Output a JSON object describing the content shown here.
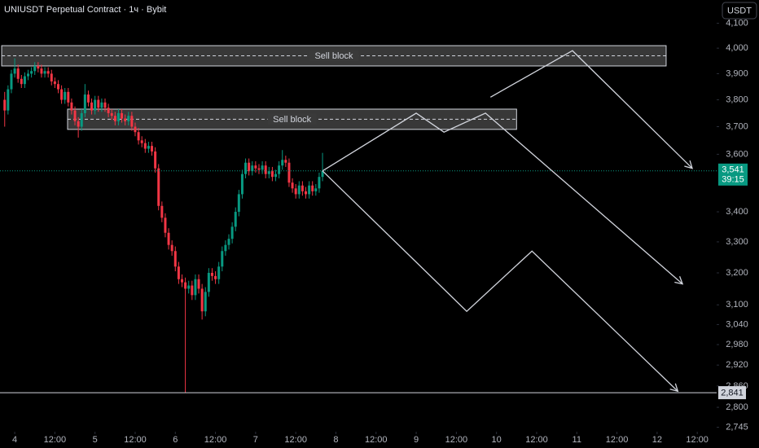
{
  "chart_data": {
    "type": "candlestick",
    "title": "UNIUSDT Perpetual Contract · 1ч · Bybit",
    "currency": "USDT",
    "log_scale": true,
    "up_color": "#089981",
    "down_color": "#f23645",
    "xlim": [
      -4.4,
      209.8
    ],
    "ylim": [
      2733,
      4196
    ],
    "xticks": [
      {
        "value": 0,
        "label": "4"
      },
      {
        "value": 12,
        "label": "12:00"
      },
      {
        "value": 24,
        "label": "5"
      },
      {
        "value": 36,
        "label": "12:00"
      },
      {
        "value": 48,
        "label": "6"
      },
      {
        "value": 60,
        "label": "12:00"
      },
      {
        "value": 72,
        "label": "7"
      },
      {
        "value": 84,
        "label": "12:00"
      },
      {
        "value": 96,
        "label": "8"
      },
      {
        "value": 108,
        "label": "12:00"
      },
      {
        "value": 120,
        "label": "9"
      },
      {
        "value": 132,
        "label": "12:00"
      },
      {
        "value": 144,
        "label": "10"
      },
      {
        "value": 156,
        "label": "12:00"
      },
      {
        "value": 168,
        "label": "11"
      },
      {
        "value": 180,
        "label": "12:00"
      },
      {
        "value": 192,
        "label": "12"
      },
      {
        "value": 204,
        "label": "12:00"
      }
    ],
    "yticks": [
      {
        "value": 4100,
        "label": "4,100"
      },
      {
        "value": 4000,
        "label": "4,000"
      },
      {
        "value": 3900,
        "label": "3,900"
      },
      {
        "value": 3800,
        "label": "3,800"
      },
      {
        "value": 3700,
        "label": "3,700"
      },
      {
        "value": 3600,
        "label": "3,600"
      },
      {
        "value": 3400,
        "label": "3,400"
      },
      {
        "value": 3300,
        "label": "3,300"
      },
      {
        "value": 3200,
        "label": "3,200"
      },
      {
        "value": 3100,
        "label": "3,100"
      },
      {
        "value": 3040,
        "label": "3,040"
      },
      {
        "value": 2980,
        "label": "2,980"
      },
      {
        "value": 2920,
        "label": "2,920"
      },
      {
        "value": 2860,
        "label": "2,860"
      },
      {
        "value": 2800,
        "label": "2,800"
      },
      {
        "value": 2745,
        "label": "2,745"
      }
    ],
    "x": [
      -3,
      -2,
      -1,
      0,
      1,
      2,
      3,
      4,
      5,
      6,
      7,
      8,
      9,
      10,
      11,
      12,
      13,
      14,
      15,
      16,
      17,
      18,
      19,
      20,
      21,
      22,
      23,
      24,
      25,
      26,
      27,
      28,
      29,
      30,
      31,
      32,
      33,
      34,
      35,
      36,
      37,
      38,
      39,
      40,
      41,
      42,
      43,
      44,
      45,
      46,
      47,
      48,
      49,
      50,
      51,
      52,
      53,
      54,
      55,
      56,
      57,
      58,
      59,
      60,
      61,
      62,
      63,
      64,
      65,
      66,
      67,
      68,
      69,
      70,
      71,
      72,
      73,
      74,
      75,
      76,
      77,
      78,
      79,
      80,
      81,
      82,
      83,
      84,
      85,
      86,
      87,
      88,
      89,
      90,
      91,
      92
    ],
    "open": [
      3800,
      3760,
      3840,
      3900,
      3920,
      3880,
      3860,
      3890,
      3900,
      3910,
      3930,
      3920,
      3900,
      3910,
      3900,
      3870,
      3860,
      3840,
      3800,
      3830,
      3790,
      3760,
      3720,
      3700,
      3750,
      3820,
      3790,
      3760,
      3800,
      3770,
      3790,
      3770,
      3750,
      3740,
      3720,
      3750,
      3730,
      3720,
      3740,
      3700,
      3680,
      3650,
      3640,
      3620,
      3630,
      3610,
      3550,
      3420,
      3380,
      3330,
      3290,
      3270,
      3220,
      3180,
      3170,
      3150,
      3160,
      3130,
      3180,
      3150,
      3080,
      3140,
      3200,
      3190,
      3180,
      3220,
      3270,
      3290,
      3310,
      3350,
      3400,
      3460,
      3530,
      3570,
      3540,
      3560,
      3550,
      3545,
      3560,
      3530,
      3540,
      3520,
      3530,
      3560,
      3580,
      3570,
      3500,
      3480,
      3460,
      3490,
      3470,
      3460,
      3490,
      3470,
      3480,
      3520
    ],
    "high": [
      3830,
      3855,
      3915,
      3960,
      3935,
      3895,
      3905,
      3915,
      3925,
      3945,
      3945,
      3935,
      3925,
      3925,
      3915,
      3885,
      3875,
      3855,
      3845,
      3845,
      3805,
      3775,
      3735,
      3765,
      3860,
      3835,
      3805,
      3815,
      3815,
      3805,
      3805,
      3785,
      3765,
      3755,
      3765,
      3765,
      3745,
      3755,
      3755,
      3715,
      3695,
      3665,
      3655,
      3645,
      3645,
      3625,
      3565,
      3435,
      3395,
      3345,
      3305,
      3285,
      3235,
      3195,
      3185,
      3175,
      3175,
      3195,
      3195,
      3165,
      3155,
      3215,
      3215,
      3205,
      3235,
      3285,
      3305,
      3325,
      3365,
      3415,
      3475,
      3545,
      3585,
      3585,
      3575,
      3575,
      3565,
      3575,
      3575,
      3555,
      3555,
      3545,
      3575,
      3615,
      3595,
      3585,
      3515,
      3495,
      3505,
      3505,
      3485,
      3505,
      3505,
      3495,
      3535,
      3605
    ],
    "low": [
      3700,
      3745,
      3825,
      3885,
      3865,
      3845,
      3845,
      3875,
      3885,
      3895,
      3905,
      3885,
      3885,
      3885,
      3855,
      3845,
      3825,
      3785,
      3785,
      3775,
      3745,
      3705,
      3660,
      3685,
      3735,
      3775,
      3745,
      3745,
      3755,
      3755,
      3755,
      3735,
      3725,
      3705,
      3705,
      3715,
      3705,
      3705,
      3685,
      3665,
      3635,
      3625,
      3605,
      3605,
      3595,
      3535,
      3405,
      3365,
      3315,
      3275,
      3255,
      3205,
      3165,
      3155,
      2841,
      3135,
      3115,
      3115,
      3135,
      3055,
      3065,
      3125,
      3175,
      3165,
      3165,
      3205,
      3255,
      3275,
      3295,
      3335,
      3385,
      3445,
      3515,
      3525,
      3525,
      3535,
      3530,
      3530,
      3515,
      3515,
      3505,
      3505,
      3515,
      3545,
      3555,
      3485,
      3465,
      3445,
      3445,
      3455,
      3445,
      3445,
      3455,
      3455,
      3465,
      3505
    ],
    "close": [
      3760,
      3840,
      3900,
      3920,
      3880,
      3860,
      3890,
      3900,
      3910,
      3930,
      3920,
      3900,
      3910,
      3900,
      3870,
      3860,
      3840,
      3800,
      3830,
      3790,
      3760,
      3720,
      3700,
      3750,
      3820,
      3790,
      3760,
      3800,
      3770,
      3790,
      3770,
      3750,
      3740,
      3720,
      3750,
      3730,
      3720,
      3740,
      3700,
      3680,
      3650,
      3640,
      3620,
      3630,
      3610,
      3550,
      3420,
      3380,
      3330,
      3290,
      3270,
      3220,
      3180,
      3170,
      3150,
      3160,
      3130,
      3180,
      3150,
      3080,
      3140,
      3200,
      3190,
      3180,
      3220,
      3270,
      3290,
      3310,
      3350,
      3400,
      3460,
      3530,
      3570,
      3540,
      3560,
      3550,
      3545,
      3560,
      3530,
      3540,
      3520,
      3530,
      3560,
      3580,
      3570,
      3500,
      3480,
      3460,
      3490,
      3470,
      3460,
      3490,
      3470,
      3480,
      3520,
      3541
    ],
    "last_price": {
      "value": 3541,
      "label": "3,541"
    },
    "countdown": "39:15",
    "level": {
      "value": 2841,
      "label": "2,841"
    },
    "zones": [
      {
        "label": "Sell block",
        "xlim": [
          -3.9,
          194.7
        ],
        "ylim": [
          3930,
          4010
        ]
      },
      {
        "label": "Sell block",
        "xlim": [
          15.8,
          150
        ],
        "ylim": [
          3690,
          3765
        ]
      }
    ],
    "projections": [
      {
        "x": [
          92,
          120,
          128.3,
          140.7,
          199.6
        ],
        "y": [
          3541,
          3750,
          3680,
          3750,
          3165
        ]
      },
      {
        "x": [
          92,
          135.1,
          154.6,
          198.2
        ],
        "y": [
          3541,
          3080,
          3270,
          2845
        ]
      },
      {
        "x": [
          142.2,
          166.7,
          202.5
        ],
        "y": [
          3810,
          3990,
          3550
        ]
      }
    ]
  }
}
